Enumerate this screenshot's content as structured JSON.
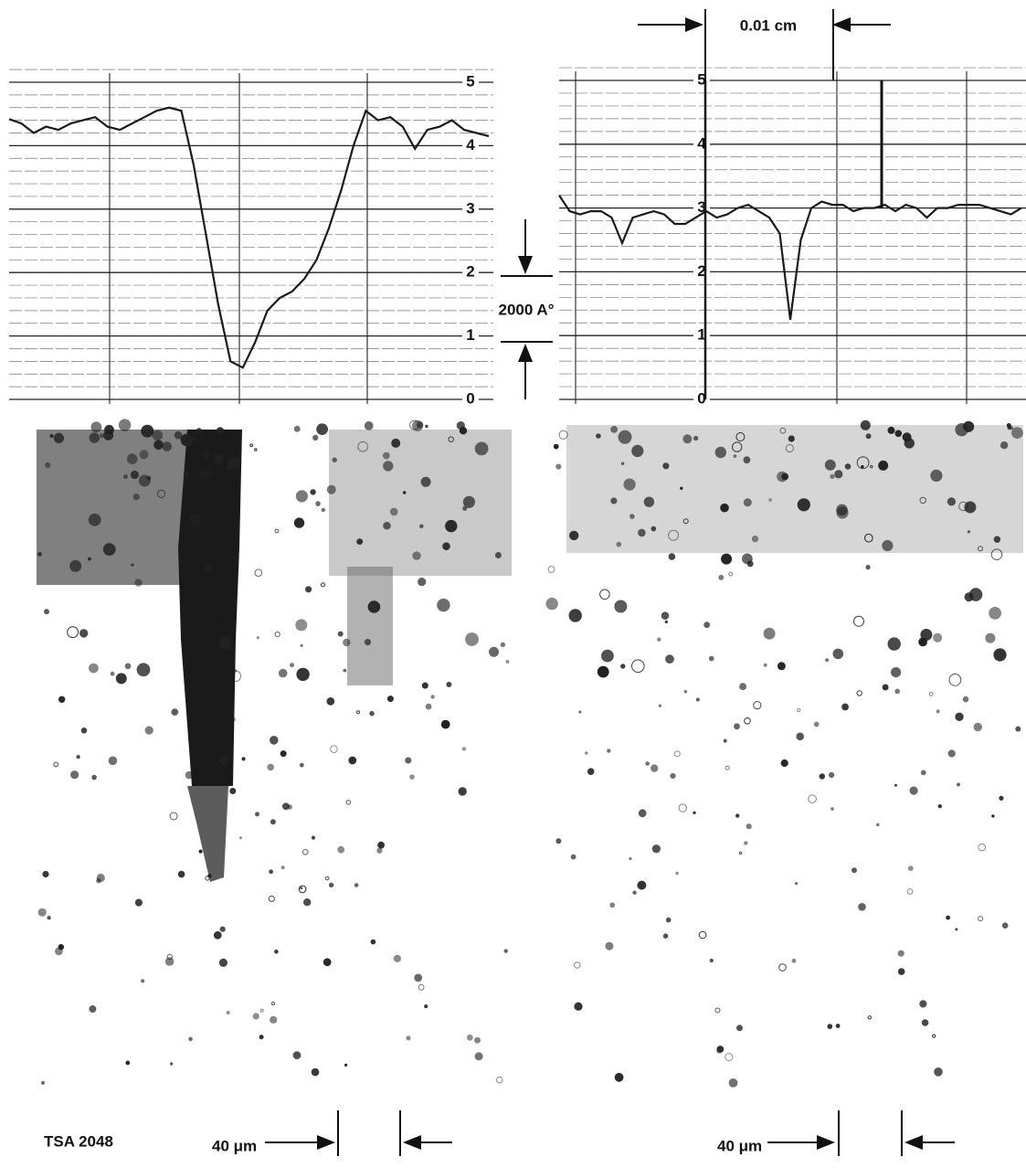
{
  "chart_data": [
    {
      "type": "line",
      "color": "#1a1a1a",
      "ylim": [
        0,
        5
      ],
      "yticks": [
        0,
        1,
        2,
        3,
        4,
        5
      ],
      "grid": true,
      "values": [
        4.42,
        4.35,
        4.2,
        4.3,
        4.25,
        4.35,
        4.4,
        4.45,
        4.3,
        4.25,
        4.35,
        4.45,
        4.55,
        4.6,
        4.55,
        3.7,
        2.6,
        1.5,
        0.6,
        0.5,
        0.9,
        1.4,
        1.6,
        1.7,
        1.9,
        2.2,
        2.7,
        3.3,
        4.0,
        4.55,
        4.4,
        4.45,
        4.3,
        3.95,
        4.25,
        4.3,
        4.4,
        4.25,
        4.2,
        4.15
      ]
    },
    {
      "type": "line",
      "color": "#1a1a1a",
      "ylim": [
        0,
        5
      ],
      "yticks": [
        0,
        1,
        2,
        3,
        4,
        5
      ],
      "grid": true,
      "values": [
        3.2,
        2.95,
        2.9,
        2.95,
        2.95,
        2.85,
        2.45,
        2.85,
        2.9,
        2.95,
        2.9,
        2.75,
        2.75,
        2.85,
        2.95,
        2.85,
        2.9,
        3.0,
        3.05,
        2.95,
        2.85,
        2.6,
        1.25,
        2.5,
        3.0,
        3.1,
        3.05,
        3.05,
        2.95,
        3.0,
        3.0,
        3.05,
        2.95,
        3.05,
        3.0,
        2.85,
        3.0,
        3.0,
        3.05,
        3.05,
        3.05,
        3.0,
        2.95,
        2.9,
        3.0
      ]
    }
  ],
  "annotations": {
    "scale_top": "0.01 cm",
    "depth_scale": "2000 A°",
    "scale_left": "40 μm",
    "scale_right": "40 μm",
    "figure_id": "TSA 2048"
  }
}
